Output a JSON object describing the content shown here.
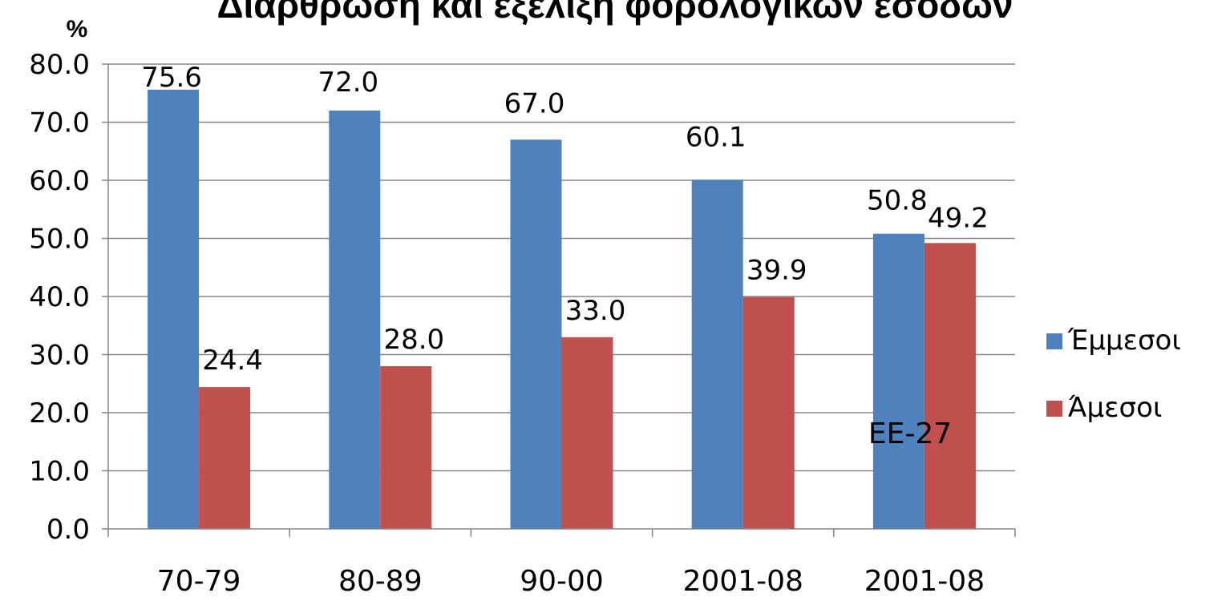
{
  "chart_data": {
    "type": "bar",
    "title": "Διαρθρωση και εξελιξη φορολογικων εσοδων",
    "ylabel": "%",
    "xlabel": "",
    "categories": [
      "70-79",
      "80-89",
      "90-00",
      "2001-08",
      "2001-08"
    ],
    "series": [
      {
        "name": "Έμμεσοι",
        "color": "#4F81BD",
        "values": [
          75.6,
          72.0,
          67.0,
          60.1,
          50.8
        ]
      },
      {
        "name": "Άμεσοι",
        "color": "#C0504D",
        "values": [
          24.4,
          28.0,
          33.0,
          39.9,
          49.2
        ]
      }
    ],
    "ylim": [
      0,
      80
    ],
    "yticks": [
      "0.0",
      "10.0",
      "20.0",
      "30.0",
      "40.0",
      "50.0",
      "60.0",
      "70.0",
      "80.0"
    ],
    "data_labels": [
      [
        "75.6",
        "72.0",
        "67.0",
        "60.1",
        "50.8"
      ],
      [
        "24.4",
        "28.0",
        "33.0",
        "39.9",
        "49.2"
      ]
    ],
    "grid": true,
    "legend_position": "right",
    "annotation": "EE-27"
  }
}
